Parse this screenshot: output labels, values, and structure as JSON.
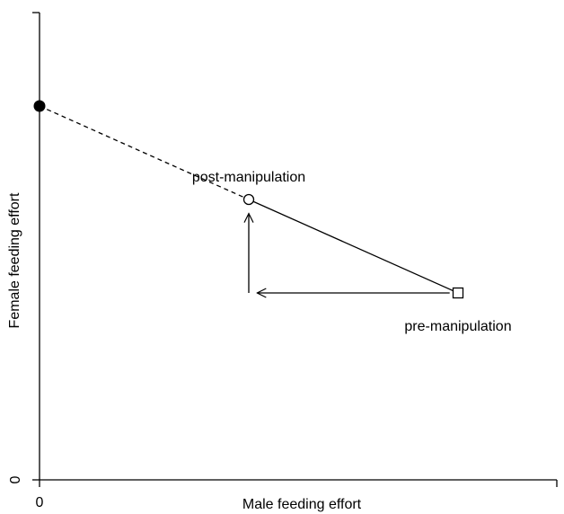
{
  "chart_data": {
    "type": "line",
    "xlabel": "Male feeding effort",
    "ylabel": "Female feeding effort",
    "xlim": [
      0,
      12.5
    ],
    "ylim": [
      0,
      10
    ],
    "x_ticks": [
      {
        "value": 0,
        "label": "0"
      }
    ],
    "y_ticks": [
      {
        "value": 0,
        "label": "0"
      }
    ],
    "grid": false,
    "points": [
      {
        "id": "intercept",
        "x": 0,
        "y": 8,
        "marker": "filled-circle",
        "label": ""
      },
      {
        "id": "post",
        "x": 5,
        "y": 6,
        "marker": "open-circle",
        "label": "post-manipulation"
      },
      {
        "id": "pre",
        "x": 10,
        "y": 4,
        "marker": "open-square",
        "label": "pre-manipulation"
      }
    ],
    "lines": [
      {
        "id": "extrapolation",
        "from": "intercept",
        "to": "post",
        "style": "dashed"
      },
      {
        "id": "response",
        "from": "post",
        "to": "pre",
        "style": "solid"
      }
    ],
    "arrows": [
      {
        "id": "arrow-horizontal",
        "from": [
          9.8,
          4.0
        ],
        "to": [
          5.2,
          4.0
        ]
      },
      {
        "id": "arrow-vertical",
        "from": [
          5.0,
          4.0
        ],
        "to": [
          5.0,
          5.7
        ]
      }
    ]
  }
}
